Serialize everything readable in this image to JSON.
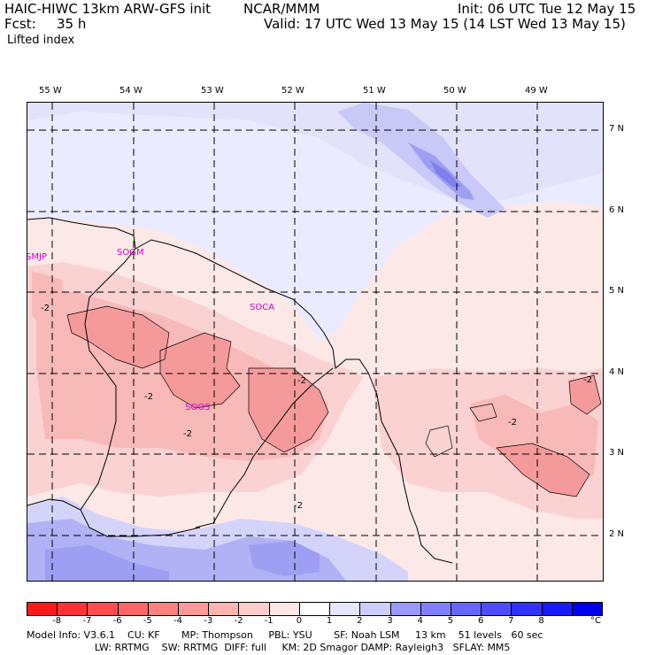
{
  "header": {
    "model_title": "HAIC-HIWC 13km ARW-GFS init",
    "center": "NCAR/MMM",
    "init": "Init: 06 UTC Tue 12 May 15",
    "fcst_label": "Fcst:",
    "fcst_value": "35 h",
    "valid": "Valid: 17 UTC Wed 13 May 15 (14 LST Wed 13 May 15)",
    "field": "Lifted index"
  },
  "map": {
    "lon_labels": [
      "55 W",
      "54 W",
      "53 W",
      "52 W",
      "51 W",
      "50 W",
      "49 W"
    ],
    "lat_labels": [
      "7 N",
      "6 N",
      "5 N",
      "4 N",
      "3 N",
      "2 N"
    ],
    "stations": [
      "SMJP",
      "SOGM",
      "SOCA",
      "SOOS"
    ],
    "contour_labels": [
      "-2",
      "-2",
      "-2",
      "-2",
      "-2",
      "-2",
      "-2"
    ]
  },
  "colorbar": {
    "labels": [
      "-8",
      "-7",
      "-6",
      "-5",
      "-4",
      "-3",
      "-2",
      "-1",
      "0",
      "1",
      "2",
      "3",
      "4",
      "5",
      "6",
      "7",
      "8"
    ],
    "unit": "°C",
    "colors": [
      "#ff1a1a",
      "#ff3333",
      "#ff4d4d",
      "#ff6666",
      "#ff8080",
      "#ff9999",
      "#ffb3b3",
      "#ffcccc",
      "#ffe6e6",
      "#ffffff",
      "#e6e6ff",
      "#ccccff",
      "#9999ff",
      "#8080ff",
      "#6666ff",
      "#4d4dff",
      "#3333ff",
      "#1a1aff",
      "#0000ee"
    ]
  },
  "footer": {
    "line1": "Model Info: V3.6.1    CU: KF       MP: Thompson     PBL: YSU       SF: Noah LSM     13 km    51 levels   60 sec",
    "line2": "                      LW: RRTMG    SW: RRTMG  DIFF: full     KM: 2D Smagor DAMP: Rayleigh3   SFLAY: MM5"
  }
}
